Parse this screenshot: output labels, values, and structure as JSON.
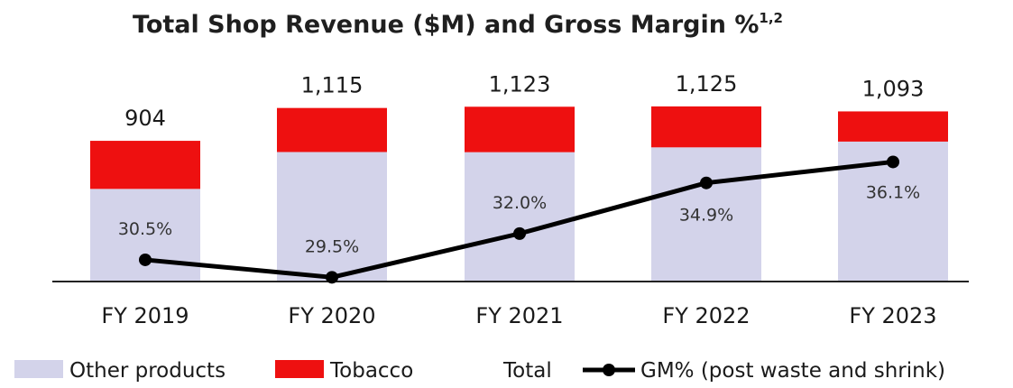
{
  "colors": {
    "other_products": "#d3d3ea",
    "tobacco": "#ee1010",
    "line": "#000000",
    "axis": "#222222"
  },
  "chart_data": {
    "type": "bar",
    "stacked": true,
    "title": "Total Shop Revenue ($M) and Gross Margin %",
    "title_superscript": "1,2",
    "categories": [
      "FY 2019",
      "FY 2020",
      "FY 2021",
      "FY 2022",
      "FY 2023"
    ],
    "series": [
      {
        "name": "Other products",
        "values": [
          595,
          832,
          831,
          862,
          899
        ]
      },
      {
        "name": "Tobacco",
        "values": [
          309,
          283,
          292,
          263,
          194
        ]
      }
    ],
    "totals": [
      904,
      1115,
      1123,
      1125,
      1093
    ],
    "total_labels": [
      "904",
      "1,115",
      "1,123",
      "1,125",
      "1,093"
    ],
    "line_series": {
      "name": "GM% (post waste and shrink)",
      "values": [
        30.5,
        29.5,
        32.0,
        34.9,
        36.1
      ],
      "labels": [
        "30.5%",
        "29.5%",
        "32.0%",
        "34.9%",
        "36.1%"
      ]
    },
    "ylim": [
      0,
      1250
    ],
    "line_ylim": [
      29,
      37
    ],
    "grid": false,
    "legend": {
      "position": "bottom",
      "items": [
        "Other products",
        "Tobacco",
        "Total",
        "GM% (post waste and shrink)"
      ]
    }
  }
}
